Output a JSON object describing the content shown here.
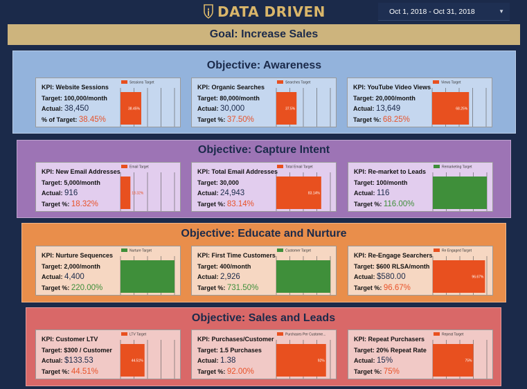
{
  "header": {
    "logo_text": "DATA DRIVEN",
    "date_range": "Oct 1, 2018 - Oct 31, 2018"
  },
  "goal": "Goal: Increase Sales",
  "colors": {
    "background": "#1b2a4a",
    "gold": "#cdb47d",
    "orange_bar": "#e8501f",
    "green_bar": "#3f8f3a",
    "pct_text": "#e8532a"
  },
  "sections": [
    {
      "title": "Objective: Awareness",
      "bg": "#93b3dc",
      "card_bg": "#c5d7ef",
      "cards": [
        {
          "kpi": "KPI: Website Sessions",
          "target": "Target: 100,000/month",
          "actual_label": "Actual:",
          "actual": "38,450",
          "pct_label": "% of Target:",
          "pct": "38.45%",
          "legend": "Sessions Target",
          "bar_color": "orange",
          "bar_value": 0.3845,
          "bar_text": "38.45%",
          "bar_text_inside": true
        },
        {
          "kpi": "KPI: Organic Searches",
          "target": "Target: 80,000/month",
          "actual_label": "Actual:",
          "actual": "30,000",
          "pct_label": "Target %:",
          "pct": "37.50%",
          "legend": "Searches Target",
          "bar_color": "orange",
          "bar_value": 0.375,
          "bar_text": "37.5%",
          "bar_text_inside": true
        },
        {
          "kpi": "KPI: YouTube Video Views",
          "target": "Target: 20,000/month",
          "actual_label": "Actual:",
          "actual": "13,649",
          "pct_label": "Target %:",
          "pct": "68.25%",
          "legend": "Views Target",
          "bar_color": "orange",
          "bar_value": 0.6825,
          "bar_text": "68.25%",
          "bar_text_inside": true
        }
      ]
    },
    {
      "title": "Objective: Capture Intent",
      "bg": "#9d74b5",
      "card_bg": "#e2cdee",
      "cards": [
        {
          "kpi": "KPI: New Email Addresses",
          "target": "Target: 5,000/month",
          "actual_label": "Actual:",
          "actual": "916",
          "pct_label": "Target %:",
          "pct": "18.32%",
          "legend": "Email Target",
          "bar_color": "orange",
          "bar_value": 0.1832,
          "bar_text": "18.32%",
          "bar_text_inside": false
        },
        {
          "kpi": "KPI: Total Email Addresses",
          "target": "Target: 30,000",
          "actual_label": "Actual:",
          "actual": "24,943",
          "pct_label": "Target %:",
          "pct": "83.14%",
          "legend": "Total Email Target",
          "bar_color": "orange",
          "bar_value": 0.8314,
          "bar_text": "83.14%",
          "bar_text_inside": true
        },
        {
          "kpi": "KPI: Re-market to Leads",
          "target": "Target: 100/month",
          "actual_label": "Actual:",
          "actual": "116",
          "pct_label": "Target %:",
          "pct": "116.00%",
          "legend": "Remarketing Target",
          "bar_color": "green",
          "bar_value": 1.0,
          "bar_text": "",
          "bar_text_inside": true,
          "pct_green": true
        }
      ]
    },
    {
      "title": "Objective: Educate and Nurture",
      "bg": "#e98e4b",
      "card_bg": "#f6d7c2",
      "cards": [
        {
          "kpi": "KPI: Nurture Sequences",
          "target": "Target: 2,000/month",
          "actual_label": "Actual:",
          "actual": "4,400",
          "pct_label": "Target %:",
          "pct": "220.00%",
          "legend": "Nurture Target",
          "bar_color": "green",
          "bar_value": 1.0,
          "bar_text": "",
          "bar_text_inside": true,
          "pct_green": true
        },
        {
          "kpi": "KPI: First Time Customers",
          "target": "Target: 400/month",
          "actual_label": "Actual:",
          "actual": "2,926",
          "pct_label": "Target %:",
          "pct": "731.50%",
          "legend": "Customer Target",
          "bar_color": "green",
          "bar_value": 1.0,
          "bar_text": "",
          "bar_text_inside": true,
          "pct_green": true
        },
        {
          "kpi": "KPI: Re-Engage Searchers",
          "target": "Target: $600 RLSA/month",
          "actual_label": "Actual:",
          "actual": "$580.00",
          "pct_label": "Target %:",
          "pct": "96.67%",
          "legend": "Re Engaged Target",
          "bar_color": "orange",
          "bar_value": 0.9667,
          "bar_text": "96.67%",
          "bar_text_inside": true
        }
      ]
    },
    {
      "title": "Objective: Sales and Leads",
      "bg": "#d96868",
      "card_bg": "#f1c9c6",
      "cards": [
        {
          "kpi": "KPI: Customer LTV",
          "target": "Target: $300 / Customer",
          "actual_label": "Actual:",
          "actual": "$133.53",
          "pct_label": "Target %:",
          "pct": "44.51%",
          "legend": "LTV Target",
          "bar_color": "orange",
          "bar_value": 0.4451,
          "bar_text": "44.51%",
          "bar_text_inside": true
        },
        {
          "kpi": "KPI: Purchases/Customer",
          "target": "Target: 1.5 Purchases",
          "actual_label": "Actual:",
          "actual": "1.38",
          "pct_label": "Target %:",
          "pct": "92.00%",
          "legend": "Purchases Per Custome...",
          "bar_color": "orange",
          "bar_value": 0.92,
          "bar_text": "92%",
          "bar_text_inside": true
        },
        {
          "kpi": "KPI: Repeat Purchasers",
          "target": "Target: 20% Repeat Rate",
          "actual_label": "Actual:",
          "actual": "15%",
          "pct_label": "Target %:",
          "pct": "75%",
          "legend": "Repeat Target",
          "bar_color": "orange",
          "bar_value": 0.75,
          "bar_text": "75%",
          "bar_text_inside": true
        }
      ]
    }
  ]
}
